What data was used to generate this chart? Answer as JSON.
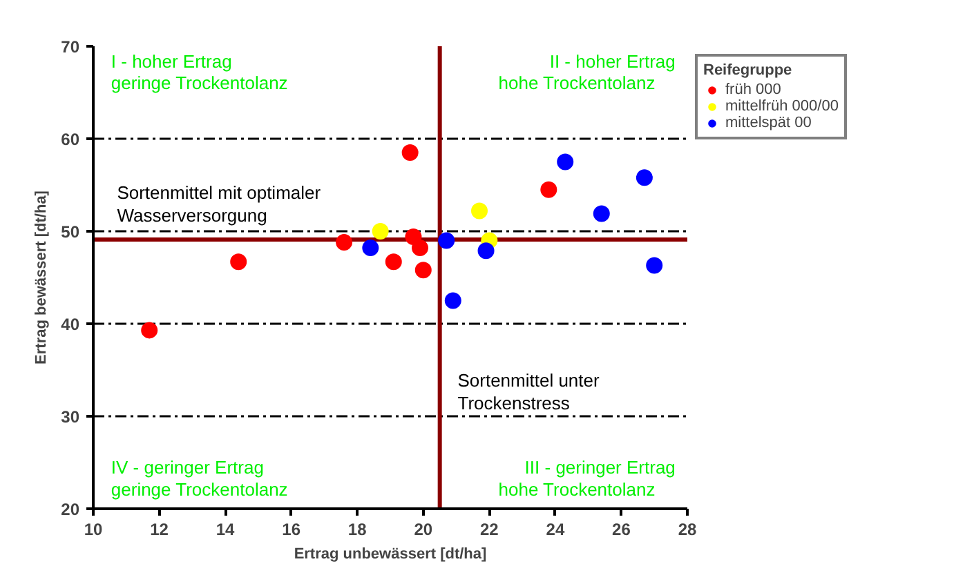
{
  "chart_data": {
    "type": "scatter",
    "xlabel": "Ertrag unbewässert [dt/ha]",
    "ylabel": "Ertrag bewässert [dt/ha]",
    "legend_title": "Reifegruppe",
    "legend": "top right",
    "marker": "circle",
    "grid": "y",
    "xlim": [
      10,
      28
    ],
    "xticks": [
      10,
      12,
      14,
      16,
      18,
      20,
      22,
      24,
      26,
      28
    ],
    "ylim": [
      20,
      70
    ],
    "yticks": [
      20,
      30,
      40,
      50,
      60,
      70
    ],
    "series": [
      {
        "name": "früh 000",
        "color": "#ff0000",
        "x": [
          19.6,
          23.8,
          14.4,
          17.6,
          19.7,
          19.9,
          19.1,
          20.0,
          11.7
        ],
        "values": [
          58.5,
          54.5,
          46.7,
          48.8,
          49.4,
          48.2,
          46.7,
          45.8,
          39.3
        ]
      },
      {
        "name": "mittelfrüh 000/00",
        "color": "#ffff00",
        "x": [
          18.7,
          21.7,
          22.0
        ],
        "values": [
          50.0,
          52.2,
          49.0
        ]
      },
      {
        "name": "mittelspät 00",
        "color": "#0000ff",
        "x": [
          18.4,
          20.7,
          20.9,
          21.9,
          24.3,
          26.7,
          25.4,
          27.0
        ],
        "values": [
          48.2,
          49.0,
          42.5,
          47.9,
          57.5,
          55.8,
          51.9,
          46.3
        ]
      }
    ],
    "ref_lines": [
      {
        "axis": "y",
        "value": 49.1,
        "label": "Sortenmittel mit optimaler\nWasserversorgung",
        "color": "#8b0000"
      },
      {
        "axis": "x",
        "value": 20.5,
        "label": "Sortenmittel unter\nTrockenstress",
        "color": "#8b0000"
      }
    ],
    "annotations": [
      "I - hoher Ertrag\n    geringe Trockentolanz",
      "II - hoher Ertrag\n    hohe Trockentolanz",
      "IV - geringer Ertrag\n    geringe Trockentolanz",
      "III - geringer Ertrag\n    hohe Trockentolanz"
    ]
  }
}
